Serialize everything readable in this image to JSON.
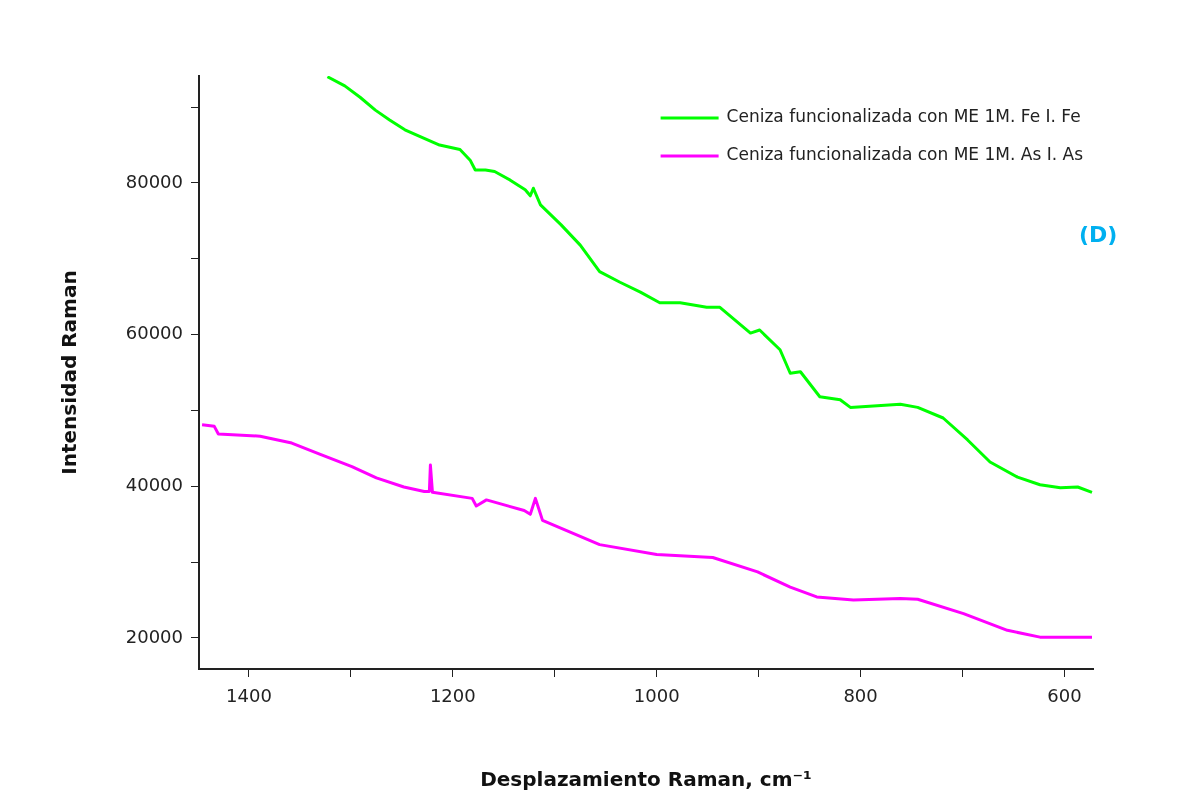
{
  "chart_data": {
    "type": "line",
    "xlabel": "Desplazamiento Raman, cm⁻¹",
    "ylabel": "Intensidad Raman",
    "annotations": [
      "(D)"
    ],
    "xlim": [
      1449,
      572
    ],
    "xticks": [
      1400,
      {
        "value": 1300,
        "label": null
      },
      1200,
      {
        "value": 1100,
        "label": null
      },
      1000,
      {
        "value": 900,
        "label": null
      },
      800,
      {
        "value": 700,
        "label": null
      },
      600
    ],
    "ylim": [
      15900,
      94100
    ],
    "yticks": [
      20000,
      {
        "value": 30000,
        "label": null
      },
      40000,
      {
        "value": 50000,
        "label": null
      },
      60000,
      {
        "value": 70000,
        "label": null
      },
      80000,
      {
        "value": 90000,
        "label": null
      }
    ],
    "grid": false,
    "legend": "top right",
    "marker": "none",
    "line_style": "solid",
    "series": [
      {
        "name": "Ceniza funcionalizada con ME 1M. Fe I. Fe",
        "color": "#00ff00",
        "x": [
          1323,
          1306,
          1291,
          1276,
          1262,
          1247,
          1232,
          1213,
          1193,
          1183,
          1178,
          1168,
          1159,
          1144,
          1129,
          1124,
          1121,
          1114,
          1094,
          1075,
          1056,
          1036,
          1016,
          997,
          977,
          951,
          938,
          908,
          899,
          879,
          869,
          859,
          840,
          820,
          810,
          761,
          744,
          719,
          695,
          673,
          646,
          624,
          604,
          587,
          573
        ],
        "values": [
          94000,
          92800,
          91300,
          89600,
          88300,
          87000,
          86100,
          85000,
          84400,
          83000,
          81700,
          81700,
          81500,
          80400,
          79100,
          78300,
          79300,
          77100,
          74500,
          71800,
          68300,
          66900,
          65600,
          64200,
          64200,
          63600,
          63600,
          60200,
          60600,
          58000,
          54900,
          55100,
          51800,
          51400,
          50400,
          50800,
          50400,
          49000,
          46100,
          43200,
          41200,
          40200,
          39800,
          39900,
          39200
        ]
      },
      {
        "name": "Ceniza funcionalizada con ME 1M. As I. As",
        "color": "#ff00ff",
        "x": [
          1446,
          1434,
          1430,
          1389,
          1358,
          1330,
          1299,
          1275,
          1248,
          1228,
          1223,
          1222,
          1220,
          1181,
          1177,
          1167,
          1130,
          1124,
          1119,
          1112,
          1056,
          1000,
          945,
          901,
          869,
          843,
          807,
          761,
          744,
          699,
          656,
          624,
          573
        ],
        "values": [
          48100,
          47900,
          46900,
          46600,
          45700,
          44200,
          42600,
          41100,
          39900,
          39300,
          39300,
          42800,
          39200,
          38400,
          37400,
          38200,
          36800,
          36300,
          38400,
          35500,
          32300,
          31000,
          30600,
          28700,
          26700,
          25400,
          25000,
          25200,
          25100,
          23200,
          21000,
          20100,
          20100
        ]
      }
    ]
  }
}
